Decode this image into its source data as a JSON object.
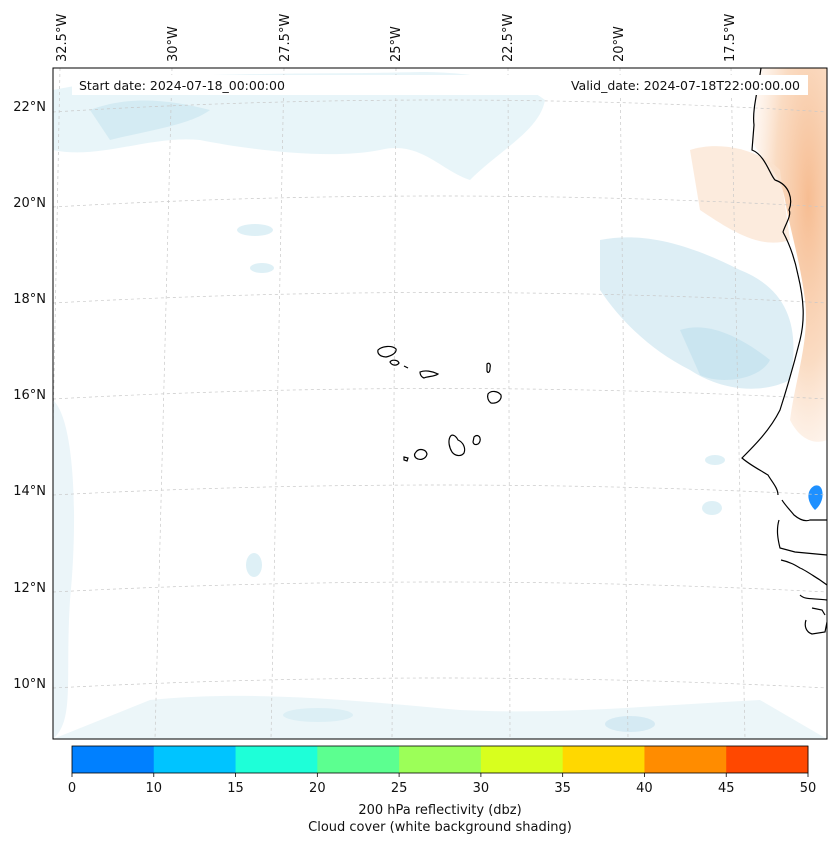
{
  "header": {
    "start_date": "Start date: 2024-07-18_00:00:00",
    "valid_date": "Valid_date: 2024-07-18T22:00:00.00"
  },
  "map": {
    "lon_labels": [
      "32.5°W",
      "30°W",
      "27.5°W",
      "25°W",
      "22.5°W",
      "20°W",
      "17.5°W"
    ],
    "lat_labels": [
      "22°N",
      "20°N",
      "18°N",
      "16°N",
      "14°N",
      "12°N",
      "10°N"
    ]
  },
  "colorbar": {
    "ticks": [
      "0",
      "10",
      "15",
      "20",
      "25",
      "30",
      "35",
      "40",
      "45",
      "50"
    ],
    "colors": [
      "#0080ff",
      "#00c4ff",
      "#1effd8",
      "#5cff90",
      "#9cff58",
      "#d8ff1e",
      "#ffd800",
      "#ff8c00",
      "#ff4800"
    ],
    "label_line1": "200 hPa reflectivity (dbz)",
    "label_line2": "Cloud cover (white background shading)"
  }
}
